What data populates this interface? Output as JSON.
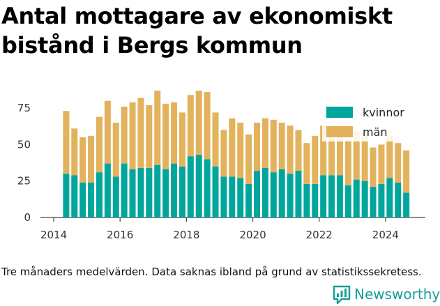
{
  "title": "Antal mottagare av ekonomiskt bistånd i Bergs kommun",
  "footnote": "Tre månaders medelvärden. Data saknas ibland på grund av statistikssekretess.",
  "brand": {
    "name": "Newsworthy",
    "color": "#1a9e97",
    "icon": "bar-chart-speech-bubble-icon"
  },
  "colors": {
    "kvinnor": "#00a69c",
    "man": "#e2b25c",
    "axis": "#444444",
    "grid": "#e5e5e5"
  },
  "chart_data": {
    "type": "bar",
    "stacked": true,
    "xlim": [
      2013.6,
      2025.2
    ],
    "ylim": [
      0,
      87
    ],
    "x_ticks": [
      2014,
      2016,
      2018,
      2020,
      2022,
      2024
    ],
    "y_ticks": [
      0,
      25,
      50,
      75
    ],
    "grid": false,
    "legend_position": "top-right",
    "x": [
      2014.375,
      2014.625,
      2014.875,
      2015.125,
      2015.375,
      2015.625,
      2015.875,
      2016.125,
      2016.375,
      2016.625,
      2016.875,
      2017.125,
      2017.375,
      2017.625,
      2017.875,
      2018.125,
      2018.375,
      2018.625,
      2018.875,
      2019.125,
      2019.375,
      2019.625,
      2019.875,
      2020.125,
      2020.375,
      2020.625,
      2020.875,
      2021.125,
      2021.375,
      2021.625,
      2021.875,
      2022.125,
      2022.375,
      2022.625,
      2022.875,
      2023.125,
      2023.375,
      2023.625,
      2023.875,
      2024.125,
      2024.375,
      2024.625
    ],
    "series": [
      {
        "name": "kvinnor",
        "values": [
          30,
          29,
          24,
          24,
          31,
          37,
          28,
          37,
          33,
          34,
          34,
          36,
          33,
          37,
          35,
          42,
          43,
          40,
          35,
          28,
          28,
          27,
          23,
          32,
          34,
          31,
          33,
          30,
          32,
          23,
          23,
          29,
          29,
          29,
          22,
          26,
          25,
          21,
          23,
          27,
          24,
          17
        ]
      },
      {
        "name": "män",
        "values": [
          43,
          32,
          31,
          32,
          38,
          43,
          37,
          39,
          46,
          48,
          43,
          51,
          45,
          42,
          37,
          42,
          44,
          46,
          37,
          32,
          40,
          38,
          34,
          33,
          34,
          36,
          32,
          33,
          28,
          28,
          33,
          34,
          28,
          29,
          31,
          33,
          33,
          27,
          27,
          29,
          27,
          29
        ]
      }
    ]
  }
}
